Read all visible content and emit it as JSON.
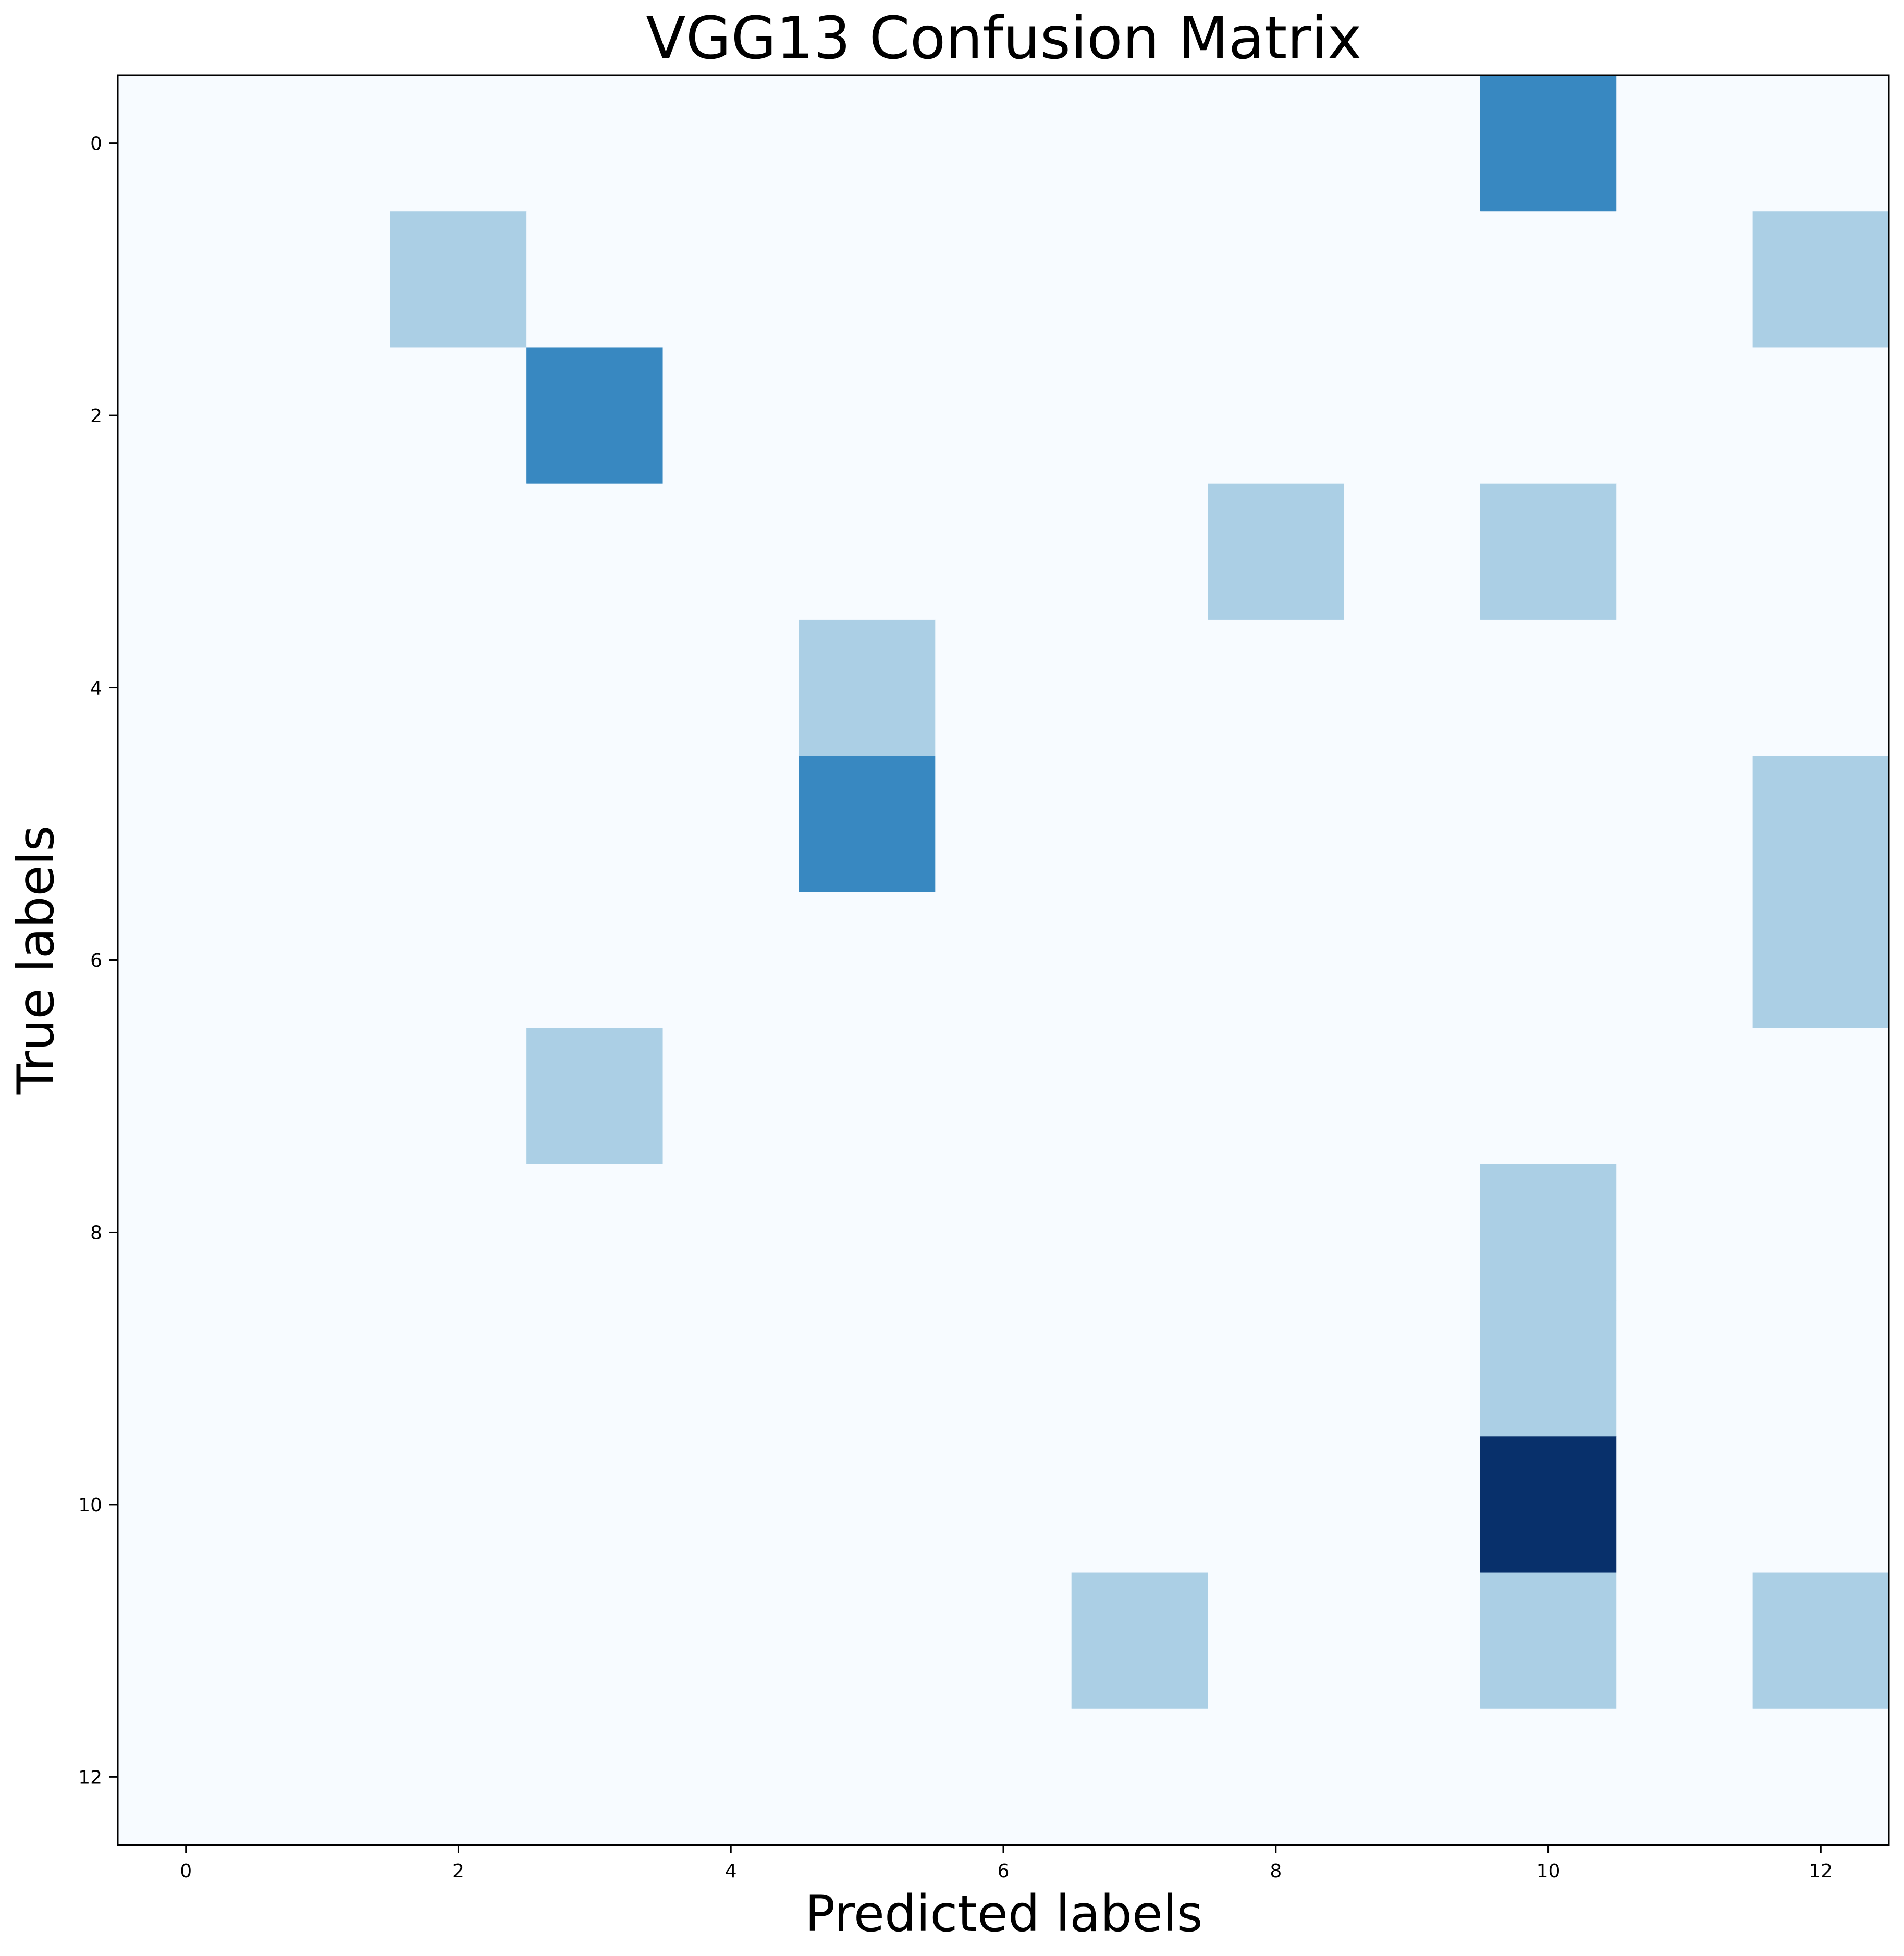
{
  "chart_data": {
    "type": "heatmap",
    "title": "VGG13 Confusion Matrix",
    "xlabel": "Predicted labels",
    "ylabel": "True labels",
    "x_ticks": [
      "0",
      "2",
      "4",
      "6",
      "8",
      "10",
      "12"
    ],
    "y_ticks": [
      "0",
      "2",
      "4",
      "6",
      "8",
      "10",
      "12"
    ],
    "rows": 13,
    "cols": 13,
    "matrix": [
      [
        0,
        0,
        0,
        0,
        0,
        0,
        0,
        0,
        0,
        0,
        2,
        0,
        0
      ],
      [
        0,
        0,
        1,
        0,
        0,
        0,
        0,
        0,
        0,
        0,
        0,
        0,
        1
      ],
      [
        0,
        0,
        0,
        2,
        0,
        0,
        0,
        0,
        0,
        0,
        0,
        0,
        0
      ],
      [
        0,
        0,
        0,
        0,
        0,
        0,
        0,
        0,
        1,
        0,
        1,
        0,
        0
      ],
      [
        0,
        0,
        0,
        0,
        0,
        1,
        0,
        0,
        0,
        0,
        0,
        0,
        0
      ],
      [
        0,
        0,
        0,
        0,
        0,
        2,
        0,
        0,
        0,
        0,
        0,
        0,
        1
      ],
      [
        0,
        0,
        0,
        0,
        0,
        0,
        0,
        0,
        0,
        0,
        0,
        0,
        1
      ],
      [
        0,
        0,
        0,
        1,
        0,
        0,
        0,
        0,
        0,
        0,
        0,
        0,
        0
      ],
      [
        0,
        0,
        0,
        0,
        0,
        0,
        0,
        0,
        0,
        0,
        1,
        0,
        0
      ],
      [
        0,
        0,
        0,
        0,
        0,
        0,
        0,
        0,
        0,
        0,
        1,
        0,
        0
      ],
      [
        0,
        0,
        0,
        0,
        0,
        0,
        0,
        0,
        0,
        0,
        4,
        0,
        0
      ],
      [
        0,
        0,
        0,
        0,
        0,
        0,
        0,
        1,
        0,
        0,
        1,
        0,
        1
      ],
      [
        0,
        0,
        0,
        0,
        0,
        0,
        0,
        0,
        0,
        0,
        0,
        0,
        0
      ]
    ],
    "value_range": [
      0,
      4
    ],
    "colormap": "Blues",
    "grid": false,
    "legend": "none"
  },
  "colors": {
    "level_0": "#f7fbff",
    "level_1": "#abcfe5",
    "level_2": "#3888c1",
    "level_3": "#1b5da6",
    "level_4": "#08306b"
  }
}
